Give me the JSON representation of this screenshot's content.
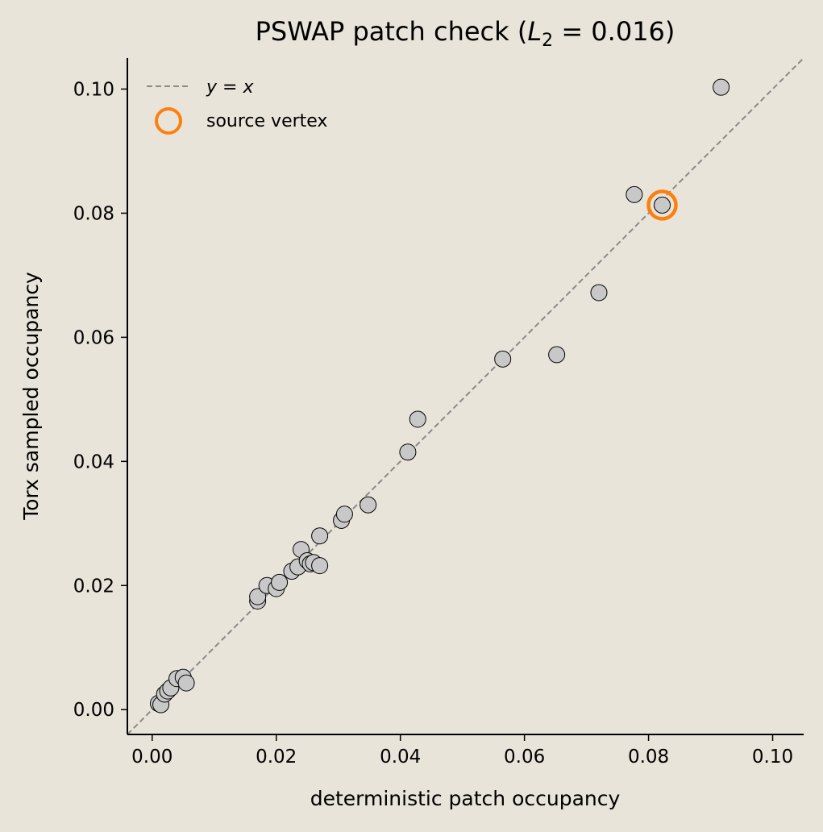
{
  "chart_data": {
    "type": "scatter",
    "title": {
      "prefix": "PSWAP patch check  (",
      "var": "L",
      "sub": "2",
      "rest": " = 0.016)"
    },
    "xlabel": "deterministic patch occupancy",
    "ylabel": "Torx sampled occupancy",
    "xlim": [
      -0.004,
      0.105
    ],
    "ylim": [
      -0.004,
      0.105
    ],
    "xticks": [
      "0.00",
      "0.02",
      "0.04",
      "0.06",
      "0.08",
      "0.10"
    ],
    "yticks": [
      "0.00",
      "0.02",
      "0.04",
      "0.06",
      "0.08",
      "0.10"
    ],
    "grid": false,
    "legend": {
      "position": "top-left",
      "entries": [
        {
          "label_var_left": "y",
          "label_eq": " = ",
          "label_var_right": "x",
          "style": "dashed-line"
        },
        {
          "label": "source vertex",
          "style": "orange-ring"
        }
      ]
    },
    "reference_line": {
      "label": "y = x",
      "color": "#8a8a8a"
    },
    "point_color": "#c8c8c8",
    "highlight_color": "#ff7f0e",
    "source_vertex": {
      "x": 0.0822,
      "y": 0.0813
    },
    "points": [
      {
        "x": 0.001,
        "y": 0.001
      },
      {
        "x": 0.0014,
        "y": 0.0008
      },
      {
        "x": 0.002,
        "y": 0.0025
      },
      {
        "x": 0.0025,
        "y": 0.003
      },
      {
        "x": 0.003,
        "y": 0.0035
      },
      {
        "x": 0.004,
        "y": 0.005
      },
      {
        "x": 0.005,
        "y": 0.0052
      },
      {
        "x": 0.0055,
        "y": 0.0043
      },
      {
        "x": 0.017,
        "y": 0.0175
      },
      {
        "x": 0.017,
        "y": 0.0182
      },
      {
        "x": 0.0185,
        "y": 0.02
      },
      {
        "x": 0.02,
        "y": 0.0195
      },
      {
        "x": 0.0205,
        "y": 0.0205
      },
      {
        "x": 0.0225,
        "y": 0.0223
      },
      {
        "x": 0.0235,
        "y": 0.023
      },
      {
        "x": 0.024,
        "y": 0.0258
      },
      {
        "x": 0.025,
        "y": 0.024
      },
      {
        "x": 0.0255,
        "y": 0.0235
      },
      {
        "x": 0.026,
        "y": 0.0237
      },
      {
        "x": 0.027,
        "y": 0.0232
      },
      {
        "x": 0.027,
        "y": 0.028
      },
      {
        "x": 0.0305,
        "y": 0.0305
      },
      {
        "x": 0.031,
        "y": 0.0315
      },
      {
        "x": 0.0348,
        "y": 0.033
      },
      {
        "x": 0.0412,
        "y": 0.0415
      },
      {
        "x": 0.0428,
        "y": 0.0468
      },
      {
        "x": 0.0565,
        "y": 0.0565
      },
      {
        "x": 0.0652,
        "y": 0.0572
      },
      {
        "x": 0.072,
        "y": 0.0672
      },
      {
        "x": 0.0777,
        "y": 0.083
      },
      {
        "x": 0.0822,
        "y": 0.0813
      },
      {
        "x": 0.0917,
        "y": 0.1003
      }
    ]
  }
}
